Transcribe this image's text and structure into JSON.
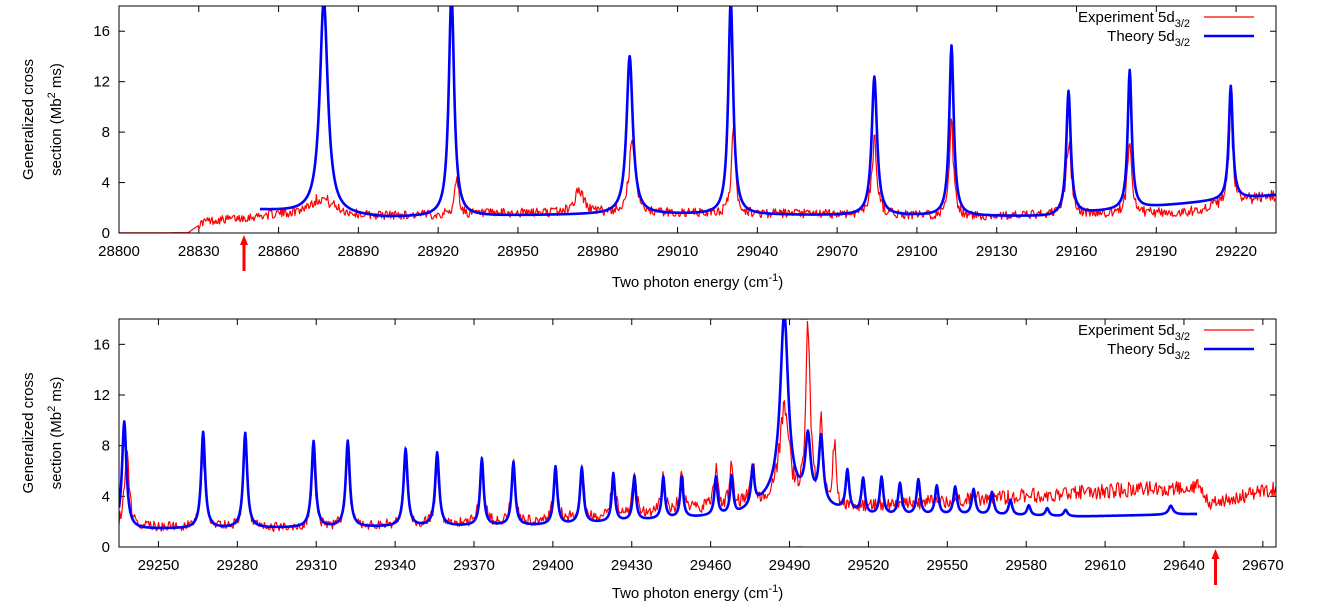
{
  "chart_data": [
    {
      "type": "line",
      "panel": "top",
      "xlabel": "Two photon energy (cm",
      "xlabel_sup": "-1",
      "xlabel_tail": ")",
      "ylabel_line1": "Generalized cross",
      "ylabel_line2_pre": "section (Mb",
      "ylabel_line2_sup": "2",
      "ylabel_line2_post": " ms)",
      "xlim": [
        28800,
        29235
      ],
      "ylim": [
        0,
        18
      ],
      "xticks": [
        28800,
        28830,
        28860,
        28890,
        28920,
        28950,
        28980,
        29010,
        29040,
        29070,
        29100,
        29130,
        29160,
        29190,
        29220
      ],
      "yticks": [
        0,
        4,
        8,
        12,
        16
      ],
      "legend_position": "top-right",
      "marker": {
        "x": 28847,
        "color": "#ff0000"
      },
      "series": [
        {
          "name": "Experiment 5d",
          "name_sub": "3/2",
          "color": "#ff0000",
          "width": 1.2,
          "onset": 28828,
          "start": 28800,
          "end": 29235,
          "baseline": [
            [
              28800,
              0.0
            ],
            [
              28826,
              0.0
            ],
            [
              28832,
              0.9
            ],
            [
              28860,
              1.4
            ],
            [
              28890,
              1.3
            ],
            [
              28960,
              1.6
            ],
            [
              29060,
              1.5
            ],
            [
              29120,
              1.3
            ],
            [
              29200,
              1.6
            ],
            [
              29235,
              3.0
            ]
          ],
          "peaks": [
            [
              28876,
              1.4,
              6
            ],
            [
              28927,
              3.2,
              0.8
            ],
            [
              28973,
              1.8,
              2
            ],
            [
              28993,
              5.5,
              1.5
            ],
            [
              29031,
              7.0,
              0.9
            ],
            [
              29084,
              5.8,
              1.2
            ],
            [
              29113,
              7.0,
              0.9
            ],
            [
              29157,
              5.5,
              1.2
            ],
            [
              29180,
              6.5,
              0.9
            ],
            [
              29218,
              7.5,
              0.9
            ]
          ]
        },
        {
          "name": "Theory 5d",
          "name_sub": "3/2",
          "color": "#0000ff",
          "width": 2.6,
          "start": 28853,
          "end": 29235,
          "baseline": [
            [
              28853,
              1.8
            ],
            [
              28900,
              1.2
            ],
            [
              28990,
              1.5
            ],
            [
              29060,
              1.4
            ],
            [
              29150,
              1.3
            ],
            [
              29235,
              3.0
            ]
          ],
          "peaks": [
            [
              28877,
              17.0,
              1.8
            ],
            [
              28925,
              17.8,
              1.2
            ],
            [
              28992,
              12.5,
              1.4
            ],
            [
              29030,
              17.0,
              1.1
            ],
            [
              29084,
              11.0,
              1.2
            ],
            [
              29113,
              13.5,
              1.0
            ],
            [
              29157,
              9.8,
              1.0
            ],
            [
              29180,
              11.0,
              0.9
            ],
            [
              29218,
              9.0,
              0.9
            ]
          ]
        }
      ]
    },
    {
      "type": "line",
      "panel": "bottom",
      "xlabel": "Two photon energy (cm",
      "xlabel_sup": "-1",
      "xlabel_tail": ")",
      "ylabel_line1": "Generalized cross",
      "ylabel_line2_pre": "section (Mb",
      "ylabel_line2_sup": "2",
      "ylabel_line2_post": " ms)",
      "xlim": [
        29235,
        29675
      ],
      "ylim": [
        0,
        18
      ],
      "xticks": [
        29250,
        29280,
        29310,
        29340,
        29370,
        29400,
        29430,
        29460,
        29490,
        29520,
        29550,
        29580,
        29610,
        29640,
        29670
      ],
      "yticks": [
        0,
        4,
        8,
        12,
        16
      ],
      "legend_position": "top-right",
      "marker": {
        "x": 29652,
        "color": "#ff0000"
      },
      "series": [
        {
          "name": "Experiment 5d",
          "name_sub": "3/2",
          "color": "#ff0000",
          "width": 1.2,
          "start": 29235,
          "end": 29675,
          "baseline": [
            [
              29235,
              1.6
            ],
            [
              29300,
              1.5
            ],
            [
              29400,
              2.0
            ],
            [
              29480,
              3.5
            ],
            [
              29510,
              3.0
            ],
            [
              29540,
              3.5
            ],
            [
              29600,
              4.3
            ],
            [
              29645,
              4.8
            ],
            [
              29650,
              3.4
            ],
            [
              29675,
              4.6
            ]
          ],
          "peaks": [
            [
              29238,
              6.0,
              1.0
            ],
            [
              29267,
              5.8,
              0.9
            ],
            [
              29283,
              6.5,
              0.9
            ],
            [
              29309,
              5.5,
              0.9
            ],
            [
              29322,
              5.8,
              0.9
            ],
            [
              29344,
              5.5,
              0.9
            ],
            [
              29356,
              4.5,
              0.9
            ],
            [
              29373,
              5.0,
              0.9
            ],
            [
              29385,
              4.5,
              0.9
            ],
            [
              29401,
              4.0,
              0.9
            ],
            [
              29411,
              4.0,
              0.9
            ],
            [
              29423,
              3.5,
              0.8
            ],
            [
              29431,
              3.2,
              0.8
            ],
            [
              29442,
              3.0,
              0.8
            ],
            [
              29449,
              3.0,
              0.8
            ],
            [
              29462,
              3.0,
              0.8
            ],
            [
              29468,
              3.0,
              0.8
            ],
            [
              29476,
              3.0,
              0.8
            ],
            [
              29488,
              8.0,
              2.0
            ],
            [
              29497,
              14.0,
              1.0
            ],
            [
              29502,
              7.0,
              0.8
            ],
            [
              29507,
              5.0,
              0.8
            ]
          ],
          "spikes": [
            [
              29492,
              0.0
            ],
            [
              29495,
              0.0
            ],
            [
              29494,
              18.0
            ],
            [
              29497,
              18.0
            ]
          ]
        },
        {
          "name": "Theory 5d",
          "name_sub": "3/2",
          "color": "#0000ff",
          "width": 2.6,
          "start": 29235,
          "end": 29645,
          "baseline": [
            [
              29235,
              1.4
            ],
            [
              29300,
              1.5
            ],
            [
              29400,
              1.7
            ],
            [
              29470,
              2.5
            ],
            [
              29485,
              4.0
            ],
            [
              29505,
              3.0
            ],
            [
              29520,
              2.4
            ],
            [
              29560,
              2.5
            ],
            [
              29600,
              2.4
            ],
            [
              29645,
              2.6
            ]
          ],
          "peaks": [
            [
              29237,
              8.5,
              1.0
            ],
            [
              29267,
              7.6,
              0.9
            ],
            [
              29283,
              7.5,
              0.9
            ],
            [
              29309,
              6.8,
              0.9
            ],
            [
              29322,
              6.8,
              0.9
            ],
            [
              29344,
              6.1,
              0.9
            ],
            [
              29356,
              5.8,
              0.9
            ],
            [
              29373,
              5.3,
              0.8
            ],
            [
              29385,
              5.0,
              0.8
            ],
            [
              29401,
              4.6,
              0.8
            ],
            [
              29411,
              4.4,
              0.8
            ],
            [
              29423,
              3.8,
              0.7
            ],
            [
              29431,
              3.5,
              0.7
            ],
            [
              29442,
              3.3,
              0.7
            ],
            [
              29449,
              3.2,
              0.7
            ],
            [
              29462,
              3.0,
              0.7
            ],
            [
              29468,
              3.0,
              0.7
            ],
            [
              29476,
              3.0,
              0.7
            ],
            [
              29488,
              14.5,
              1.8
            ],
            [
              29497,
              5.0,
              1.2
            ],
            [
              29502,
              5.2,
              1.0
            ],
            [
              29512,
              3.2,
              0.8
            ],
            [
              29518,
              2.8,
              0.8
            ],
            [
              29525,
              3.0,
              0.8
            ],
            [
              29532,
              2.5,
              0.8
            ],
            [
              29539,
              2.8,
              0.8
            ],
            [
              29546,
              2.3,
              0.8
            ],
            [
              29553,
              2.2,
              0.8
            ],
            [
              29560,
              2.0,
              0.8
            ],
            [
              29567,
              1.8,
              0.8
            ],
            [
              29574,
              1.2,
              0.8
            ],
            [
              29581,
              0.8,
              0.8
            ],
            [
              29588,
              0.6,
              0.8
            ],
            [
              29595,
              0.5,
              0.8
            ],
            [
              29635,
              0.7,
              1.0
            ]
          ]
        }
      ]
    }
  ]
}
